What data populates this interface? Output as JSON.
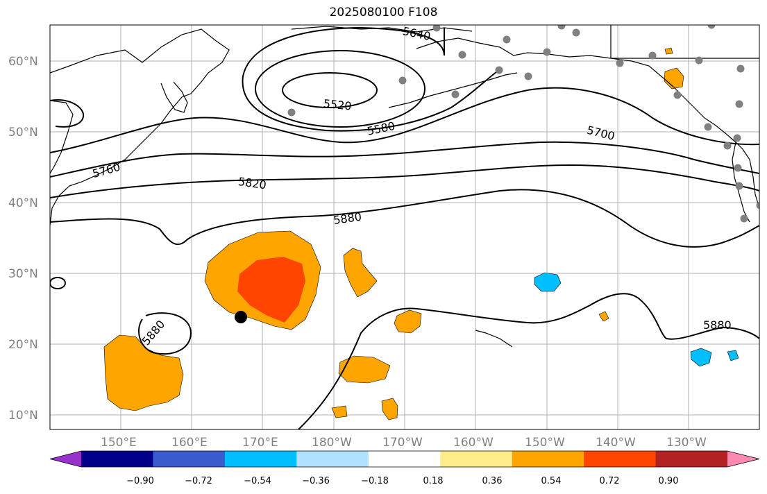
{
  "title": "2025080100 F108",
  "lat_labels": [
    "60°N",
    "50°N",
    "40°N",
    "30°N",
    "20°N",
    "10°N"
  ],
  "lon_labels": [
    "150°E",
    "160°E",
    "170°E",
    "180°W",
    "170°W",
    "160°W",
    "150°W",
    "140°W",
    "130°W"
  ],
  "contour_labels": [
    "5640",
    "5520",
    "5580",
    "5700",
    "5760",
    "5820",
    "5880",
    "5880",
    "5880"
  ],
  "colorbar": {
    "ticks": [
      "−0.90",
      "−0.72",
      "−0.54",
      "−0.36",
      "−0.18",
      "0.18",
      "0.36",
      "0.54",
      "0.72",
      "0.90"
    ],
    "colors": [
      "#9932cc",
      "#00008b",
      "#3a5bcd",
      "#00bfff",
      "#b0e2ff",
      "#ffffff",
      "#ffec8b",
      "#ffa500",
      "#ff4500",
      "#b22222",
      "#ff88b0"
    ]
  },
  "colors": {
    "orange": "#ffa500",
    "red_orange": "#ff4500",
    "sky_blue": "#00bfff",
    "station": "#808080",
    "grid": "#b0b0b0"
  },
  "markers": {
    "storm_center": "black-dot",
    "stations": "gray-dots"
  }
}
